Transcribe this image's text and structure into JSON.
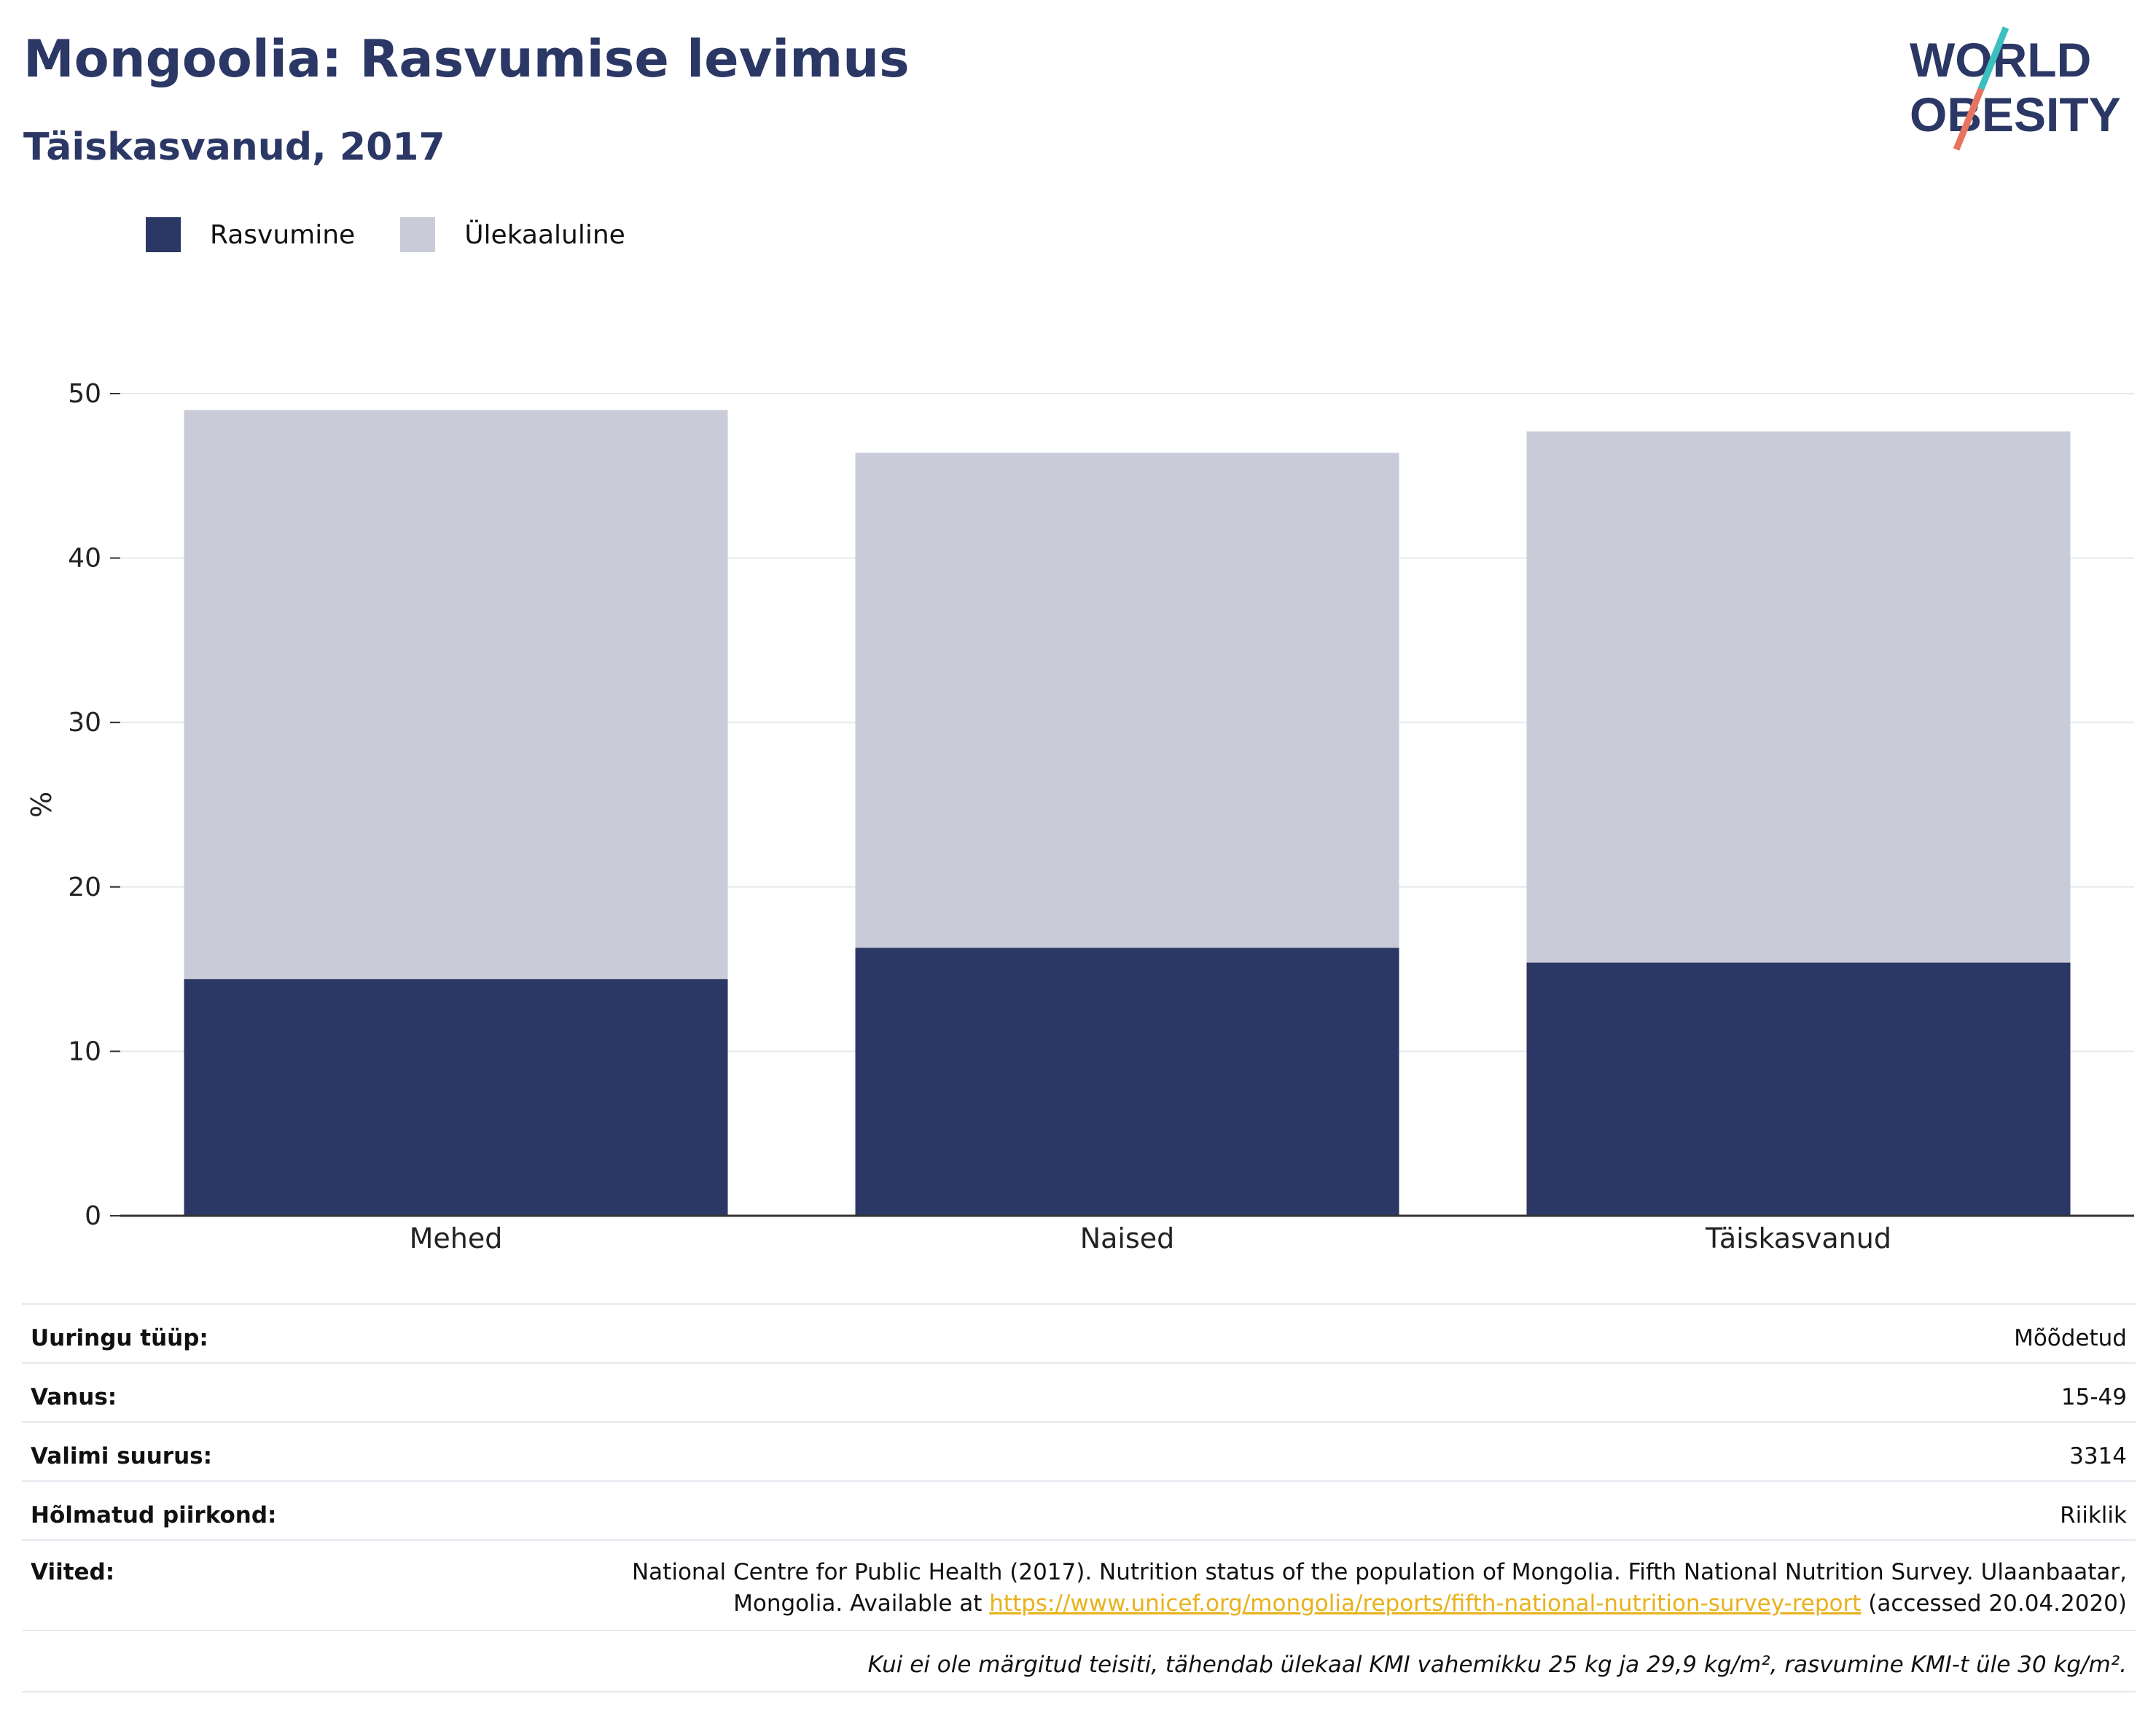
{
  "header": {
    "title": "Mongoolia: Rasvumise levimus",
    "subtitle": "Täiskasvanud, 2017"
  },
  "logo": {
    "line1": "WORLD",
    "line2": "OBESITY",
    "accent": "#e8735f",
    "accent2": "#3cbfbf"
  },
  "legend": [
    {
      "label": "Rasvumine",
      "color": "#2b3764"
    },
    {
      "label": "Ülekaaluline",
      "color": "#c9ccd8"
    }
  ],
  "chart_data": {
    "type": "bar",
    "stacked": true,
    "categories": [
      "Mehed",
      "Naised",
      "Täiskasvanud"
    ],
    "series": [
      {
        "name": "Rasvumine",
        "values": [
          14.4,
          16.3,
          15.4
        ],
        "color": "#2b3764"
      },
      {
        "name": "Ülekaaluline",
        "values": [
          34.6,
          30.1,
          32.3
        ],
        "color": "#c9ccd8"
      }
    ],
    "ylabel": "%",
    "ylim": [
      0,
      50
    ],
    "yticks": [
      0,
      10,
      20,
      30,
      40,
      50
    ],
    "grid": true
  },
  "info": {
    "rows": [
      {
        "label": "Uuringu tüüp:",
        "value": "Mõõdetud"
      },
      {
        "label": "Vanus:",
        "value": "15-49"
      },
      {
        "label": "Valimi suurus:",
        "value": "3314"
      },
      {
        "label": "Hõlmatud piirkond:",
        "value": "Riiklik"
      }
    ],
    "refs_label": "Viited:",
    "refs_line1": "National Centre for Public Health (2017). Nutrition status of the population of Mongolia. Fifth National Nutrition Survey. Ulaanbaatar,",
    "refs_line2_pre": "Mongolia. Available at",
    "refs_link": "https://www.unicef.org/mongolia/reports/fifth-national-nutrition-survey-report",
    "refs_line2_post": "(accessed 20.04.2020)",
    "note": "Kui ei ole märgitud teisiti, tähendab ülekaal KMI vahemikku 25 kg ja 29,9 kg/m², rasvumine KMI-t üle 30 kg/m²."
  }
}
